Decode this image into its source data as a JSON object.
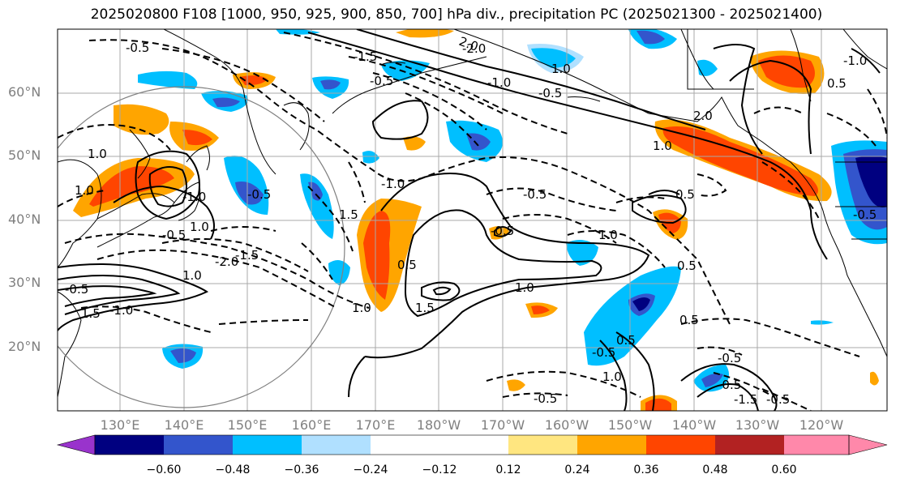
{
  "title": "2025020800 F108 [1000, 950, 925, 900, 850, 700] hPa div., precipitation PC (2025021300 - 2025021400)",
  "lat_labels": [
    "60°N",
    "50°N",
    "40°N",
    "30°N",
    "20°N"
  ],
  "lon_labels": [
    "130°E",
    "140°E",
    "150°E",
    "160°E",
    "170°E",
    "180°W",
    "170°W",
    "160°W",
    "150°W",
    "140°W",
    "130°W",
    "120°W"
  ],
  "colorbar": {
    "tick_labels": [
      "−0.60",
      "−0.48",
      "−0.36",
      "−0.24",
      "−0.12",
      "0.12",
      "0.24",
      "0.36",
      "0.48",
      "0.60"
    ],
    "colors": [
      "#9933cc",
      "#000080",
      "#3355cc",
      "#00bfff",
      "#b0e0ff",
      "#ffffff",
      "#ffe680",
      "#ffa500",
      "#ff4500",
      "#b22222",
      "#ff88aa"
    ]
  },
  "contour_labels": [
    "-0.5",
    "-1.5",
    "-2.0",
    "-1.0",
    "-0.5",
    "2.0",
    "1.0",
    "-0.5",
    "1.0",
    "-0.5",
    "0.5",
    "-1.0",
    "2.0",
    "1.0",
    "-0.5",
    "0.5",
    "1.5",
    "-1.0",
    "-2.0",
    "-1.5",
    "-1.0",
    "1.5",
    "-1.0",
    "-0.5",
    "1.0",
    "1.0",
    "0.5",
    "-0.5",
    "1.0",
    "0.5",
    "1.0",
    "-0.5",
    "-0.5",
    "0.5",
    "1.0",
    "-0.5",
    "-0.5",
    "1.5",
    "-0.5",
    "0.5",
    "1.0",
    "-0.5",
    "1.0",
    "-1.5",
    "-0.5"
  ]
}
